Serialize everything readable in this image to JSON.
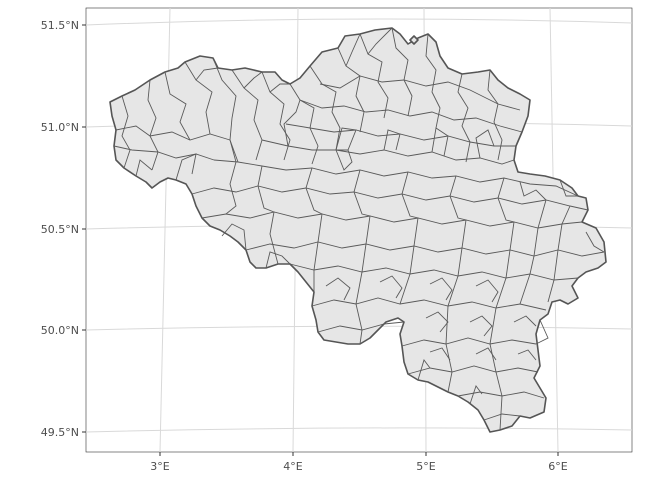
{
  "map": {
    "x_labels": [
      "3°E",
      "4°E",
      "5°E",
      "6°E"
    ],
    "y_labels": [
      "51.5°N",
      "51.0°N",
      "50.5°N",
      "50.0°N",
      "49.5°N"
    ],
    "colors": {
      "fill": "#e6e6e6",
      "border": "#555555",
      "grid": "#d9d9d9",
      "background": "#ffffff",
      "text": "#4d4d4d"
    }
  }
}
